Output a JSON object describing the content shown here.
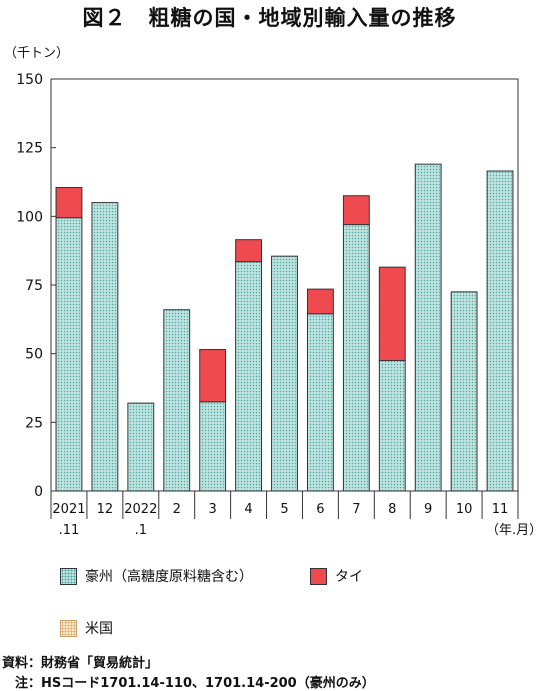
{
  "title": "図２　粗糖の国・地域別輸入量の推移",
  "unit_label": "（千トン）",
  "x_unit_label": "（年.月）",
  "colors": {
    "australia_fill": "#bfe4e0",
    "australia_dot": "#4fa6a2",
    "thailand_fill": "#ee4a4f",
    "us_fill": "#fbe7c8",
    "border": "#333333"
  },
  "chart_data": {
    "type": "bar",
    "stacked": true,
    "categories": [
      [
        "2021",
        ".11"
      ],
      [
        "12"
      ],
      [
        "2022",
        ".1"
      ],
      [
        "2"
      ],
      [
        "3"
      ],
      [
        "4"
      ],
      [
        "5"
      ],
      [
        "6"
      ],
      [
        "7"
      ],
      [
        "8"
      ],
      [
        "9"
      ],
      [
        "10"
      ],
      [
        "11"
      ]
    ],
    "series": [
      {
        "name": "豪州（高糖度原料糖含む）",
        "values": [
          99.5,
          105,
          32,
          66,
          32.5,
          83.5,
          85.5,
          64.5,
          97,
          47.5,
          119,
          72.5,
          116.5
        ]
      },
      {
        "name": "タイ",
        "values": [
          11,
          0,
          0,
          0,
          19,
          8,
          0,
          9,
          10.5,
          34,
          0,
          0,
          0
        ]
      },
      {
        "name": "米国",
        "values": [
          0,
          0,
          0,
          0,
          0,
          0,
          0,
          0,
          0,
          0,
          0,
          0,
          0
        ]
      }
    ],
    "ylim": [
      0,
      150
    ],
    "yticks": [
      0,
      25,
      50,
      75,
      100,
      125,
      150
    ],
    "grid": false,
    "legend_position": "bottom"
  },
  "legend": {
    "australia": "豪州（高糖度原料糖含む）",
    "thailand": "タイ",
    "us": "米国"
  },
  "source": "資料：財務省「貿易統計」",
  "note": "　注：HSコード1701.14-110、1701.14-200（豪州のみ）"
}
